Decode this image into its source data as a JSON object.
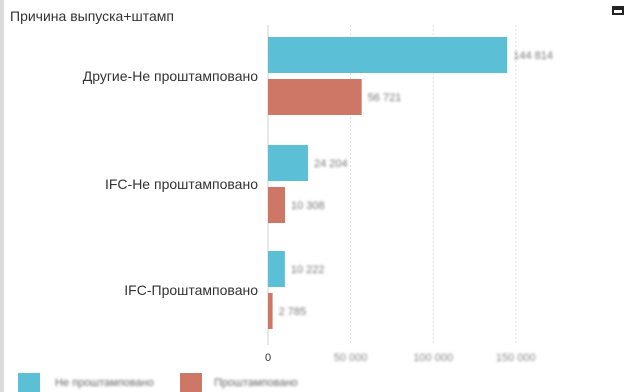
{
  "header": {
    "title": "Причина выпуска+штамп",
    "maximize_icon": "maximize-icon"
  },
  "colors": {
    "series1": "#5bbfd6",
    "series2": "#cf7767",
    "grid": "#e2e2e2"
  },
  "chart_data": {
    "type": "bar",
    "orientation": "horizontal",
    "title": "Причина выпуска+штамп",
    "categories": [
      "Другие-Не проштамповано",
      "IFC-Не проштамповано",
      "IFC-Проштамповано"
    ],
    "series": [
      {
        "values": [
          144814,
          24204,
          10222
        ]
      },
      {
        "values": [
          56721,
          10308,
          2785
        ]
      }
    ],
    "value_labels": [
      [
        "144 814",
        "56 721"
      ],
      [
        "24 204",
        "10 308"
      ],
      [
        "10 222",
        "2 785"
      ]
    ],
    "xlim": [
      0,
      160000
    ],
    "x_ticks": [
      0,
      50000,
      100000,
      150000
    ],
    "x_tick_labels": [
      "0",
      "50 000",
      "100 000",
      "150 000"
    ],
    "legend": [
      "Не проштамповано",
      "Проштамповано"
    ],
    "legend_position": "bottom-left",
    "grid": true
  }
}
